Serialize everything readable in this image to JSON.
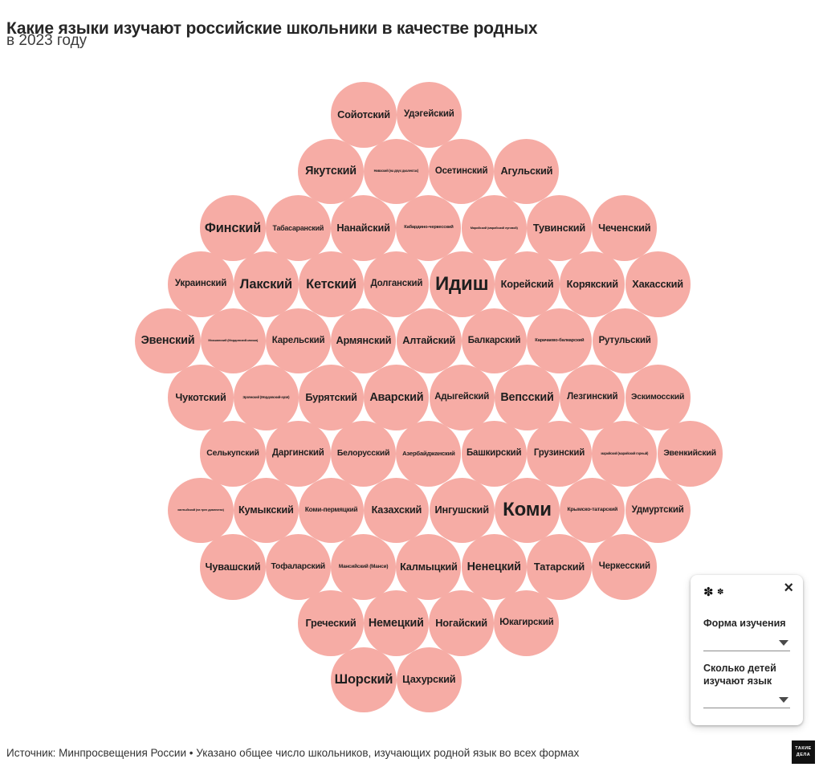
{
  "header": {
    "title": "Какие языки изучают российские школьники в качестве родных",
    "subtitle": "в 2023 году"
  },
  "filter_panel": {
    "flower_icon_1": "✽",
    "flower_icon_2": "✽",
    "close_icon": "×",
    "filters": [
      {
        "label": "Форма изучения",
        "value": ""
      },
      {
        "label": "Сколько детей изучают язык",
        "value": ""
      }
    ]
  },
  "footer": {
    "source_text": "Источник: Минпросвещения России • Указано общее число школьников, изучающих родной язык во всех формах",
    "logo_text": "ТАКИЕ\nДЕЛА"
  },
  "colors": {
    "circle_fill": "#f6aca5",
    "circle_text": "#1f1f1f",
    "title_text": "#262626"
  },
  "chart_data": {
    "type": "circle-pack",
    "title": "Какие языки изучают российские школьники в качестве родных в 2023 году",
    "layout": "hex-grid, все круги одного размера, численные значения скрыты",
    "rows": [
      [
        "Сойотский",
        "Удэгейский"
      ],
      [
        "Якутский",
        "Нивхский (на двух диалектах)",
        "Осетинский",
        "Агульский"
      ],
      [
        "Финский",
        "Табасаранский",
        "Нанайский",
        "Кабардино-черкесский",
        "Марийский (марийский луговой)",
        "Тувинский",
        "Чеченский"
      ],
      [
        "Украинский",
        "Лакский",
        "Кетский",
        "Долганский",
        "Идиш",
        "Корейский",
        "Корякский",
        "Хакасский"
      ],
      [
        "Эвенский",
        "Мокшанский (Мордовский-мокша)",
        "Карельский",
        "Армянский",
        "Алтайский",
        "Балкарский",
        "Карачаево-балкарский",
        "Рутульский"
      ],
      [
        "Чукотский",
        "Эрзянский (Мордовский-эрзя)",
        "Бурятский",
        "Аварский",
        "Адыгейский",
        "Вепсский",
        "Лезгинский",
        "Эскимосский"
      ],
      [
        "Селькупский",
        "Даргинский",
        "Белорусский",
        "Азербайджанский",
        "Башкирский",
        "Грузинский",
        "марийский (марийский горный)",
        "Эвенкийский"
      ],
      [
        "хантыйский (на трех диалектах)",
        "Кумыкский",
        "Коми-пермяцкий",
        "Казахский",
        "Ингушский",
        "Коми",
        "Крымско-татарский",
        "Удмуртский"
      ],
      [
        "Чувашский",
        "Тофаларский",
        "Мансийский (Манси)",
        "Калмыцкий",
        "Ненецкий",
        "Татарский",
        "Черкесский"
      ],
      [
        "Греческий",
        "Немецкий",
        "Ногайский",
        "Юкагирский"
      ],
      [
        "Шорский",
        "Цахурский"
      ]
    ]
  }
}
